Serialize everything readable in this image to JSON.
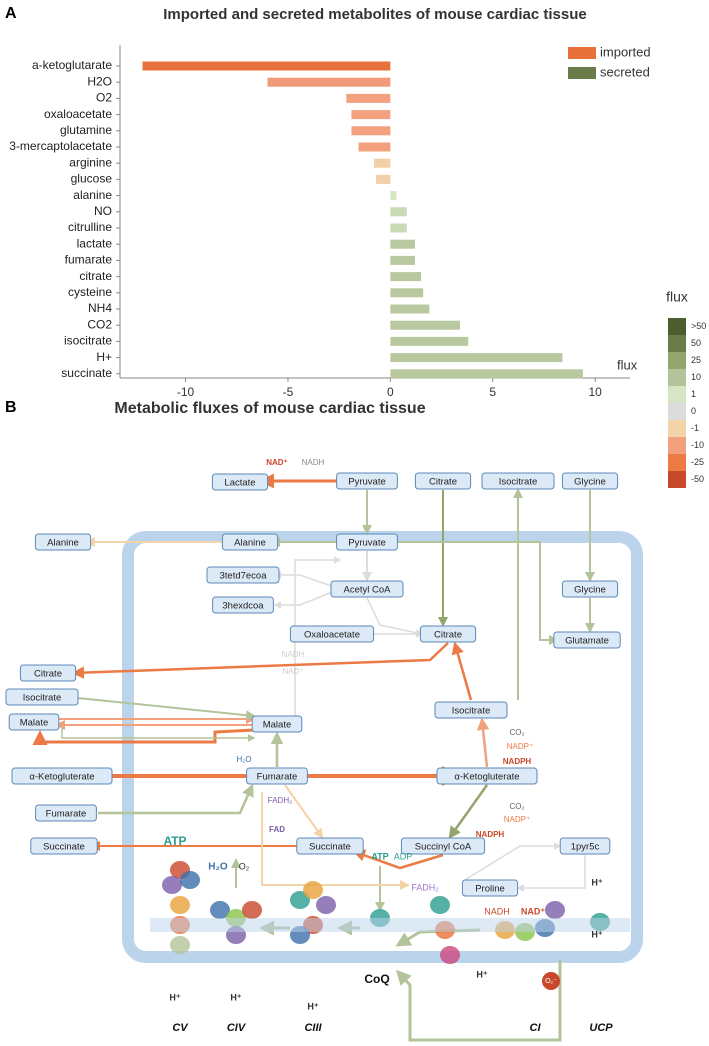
{
  "chart_data": {
    "type": "bar",
    "panel_label": "A",
    "title": "Imported and secreted metabolites of mouse cardiac tissue",
    "orientation": "horizontal",
    "categories": [
      "a-ketoglutarate",
      "H2O",
      "O2",
      "oxaloacetate",
      "glutamine",
      "3-mercaptolacetate",
      "arginine",
      "glucose",
      "alanine",
      "NO",
      "citrulline",
      "lactate",
      "fumarate",
      "citrate",
      "cysteine",
      "NH4",
      "CO2",
      "isocitrate",
      "H+",
      "succinate"
    ],
    "series": [
      {
        "name": "imported",
        "color": "#e8703a",
        "values": [
          -12.1,
          -6.0,
          -2.15,
          -1.9,
          -1.9,
          -1.55,
          -0.8,
          -0.7,
          null,
          null,
          null,
          null,
          null,
          null,
          null,
          null,
          null,
          null,
          null,
          null
        ]
      },
      {
        "name": "secreted",
        "color": "#6b7c4b",
        "values": [
          null,
          null,
          null,
          null,
          null,
          null,
          null,
          null,
          0.3,
          0.8,
          0.8,
          1.2,
          1.2,
          1.5,
          1.6,
          1.9,
          3.4,
          3.8,
          8.4,
          9.4
        ]
      }
    ],
    "bar_colors": [
      "#e8703a",
      "#f09a78",
      "#f2a07d",
      "#f2a07d",
      "#f2a07d",
      "#f2a07d",
      "#f0d0a8",
      "#f0d0a8",
      "#d6e6c5",
      "#c9d9b5",
      "#c9d9b5",
      "#b8c9a0",
      "#b8c9a0",
      "#b8c9a0",
      "#b8c9a0",
      "#b8c9a0",
      "#b8c9a0",
      "#b8c9a0",
      "#b8c9a0",
      "#b8c9a0"
    ],
    "x_label": "flux",
    "xlim": [
      -13.2,
      11.7
    ],
    "xticks": [
      -10,
      -5,
      0,
      5,
      10
    ],
    "legend_position": "upper right",
    "color_scale": {
      "title": "flux",
      "labels": [
        ">50",
        "50",
        "25",
        "10",
        "1",
        "0",
        "-1",
        "-10",
        "-25",
        "-50"
      ],
      "colors": [
        "#4c5e30",
        "#6b7c4b",
        "#93a66e",
        "#b3c49a",
        "#d6e6c5",
        "#dcdcdc",
        "#f3d3a8",
        "#f2a07d",
        "#ec7a45",
        "#c9472a"
      ]
    }
  },
  "panel_b": {
    "label": "B",
    "title": "Metabolic fluxes of mouse cardiac tissue",
    "nodes": [
      "Lactate",
      "Pyruvate",
      "Citrate",
      "Isocitrate",
      "Glycine",
      "Alanine",
      "Alanine",
      "Pyruvate",
      "Glycine",
      "3tetd7ecoa",
      "Acetyl CoA",
      "3hexdcoa",
      "Glutamate",
      "Oxaloacetate",
      "Citrate",
      "Citrate",
      "Isocitrate",
      "Malate",
      "Malate",
      "Isocitrate",
      "α-Ketogluterate",
      "Fumarate",
      "α-Ketogluterate",
      "Fumarate",
      "Succinate",
      "Succinate",
      "Succinyl CoA",
      "1pyr5c",
      "Proline"
    ],
    "annotations": [
      "NAD⁺",
      "NADH",
      "NADH",
      "NAD⁺",
      "H₂O",
      "CO₂",
      "NADP⁺",
      "NADPH",
      "CO₂",
      "NADP⁺",
      "NADPH",
      "FADH₂",
      "FAD",
      "ATP",
      "ADP",
      "FADH₂",
      "ATP",
      "H₂O",
      "O₂",
      "NADH",
      "NAD⁺",
      "H⁺",
      "H⁺",
      "H⁺",
      "H⁺",
      "H⁺",
      "H⁺",
      "CoQ",
      "O₂⁻"
    ],
    "complexes": [
      "CV",
      "CIV",
      "CIII",
      "CI",
      "UCP"
    ]
  }
}
